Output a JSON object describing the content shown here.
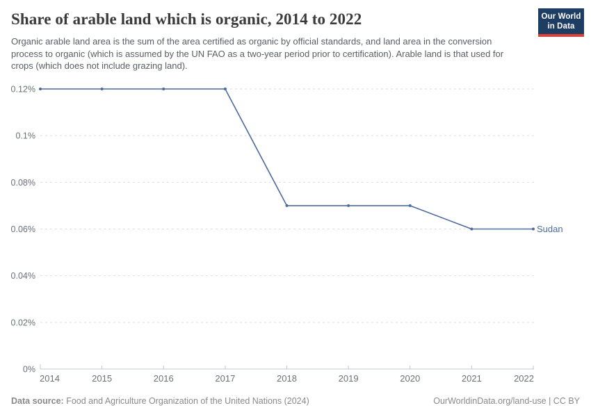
{
  "header": {
    "title": "Share of arable land which is organic, 2014 to 2022",
    "subtitle": "Organic arable land area is the sum of the area certified as organic by official standards, and land area in the conversion process to organic (which is assumed by the UN FAO as a two-year period prior to certification). Arable land is that used for crops (which does not include grazing land).",
    "logo": {
      "line1": "Our World",
      "line2": "in Data"
    }
  },
  "chart_data": {
    "type": "line",
    "title": "Share of arable land which is organic, 2014 to 2022",
    "x": [
      2014,
      2015,
      2016,
      2017,
      2018,
      2019,
      2020,
      2021,
      2022
    ],
    "series": [
      {
        "name": "Sudan",
        "values": [
          0.12,
          0.12,
          0.12,
          0.12,
          0.07,
          0.07,
          0.07,
          0.06,
          0.06
        ],
        "color": "#4c6a9c"
      }
    ],
    "unit": "%",
    "ylim": [
      0,
      0.12
    ],
    "yticks": [
      0,
      0.02,
      0.04,
      0.06,
      0.08,
      0.1,
      0.12
    ],
    "ytick_labels": [
      "0%",
      "0.02%",
      "0.04%",
      "0.06%",
      "0.08%",
      "0.1%",
      "0.12%"
    ],
    "xtick_labels": [
      "2014",
      "2015",
      "2016",
      "2017",
      "2018",
      "2019",
      "2020",
      "2021",
      "2022"
    ],
    "grid": "horizontal-dashed",
    "legend_position": "end-of-line-label",
    "markers": true
  },
  "footer": {
    "datasource_label": "Data source:",
    "datasource": "Food and Agriculture Organization of the United Nations (2024)",
    "credit": "OurWorldinData.org/land-use | CC BY"
  },
  "colors": {
    "series": "#4c6a9c",
    "grid": "#dcdee3",
    "axis": "#c3c9cd",
    "tick_text": "#6b7077",
    "title_text": "#3a3a3a",
    "subtitle_text": "#595d63",
    "footer_text": "#898989",
    "logo_bg": "#1d3d63",
    "logo_stripe": "#e04038"
  }
}
